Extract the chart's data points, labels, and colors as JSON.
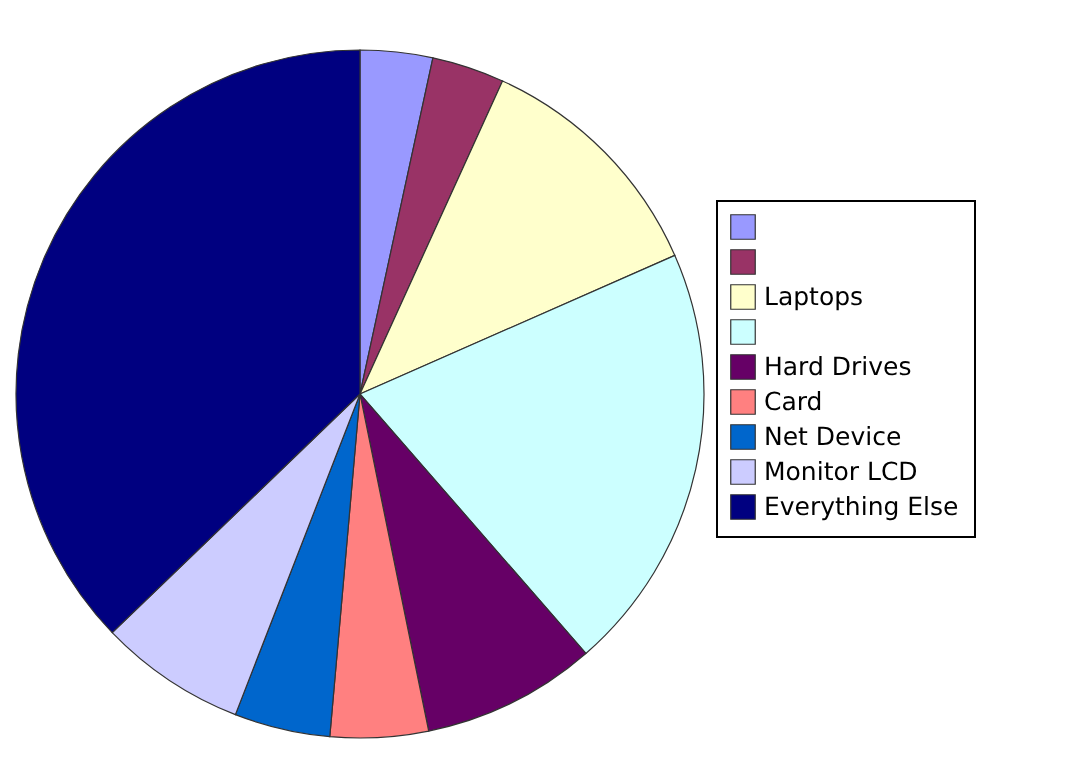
{
  "chart_data": {
    "type": "pie",
    "categories": [
      null,
      null,
      "Laptops",
      null,
      "Hard Drives",
      "Card",
      "Net Device",
      "Monitor LCD",
      "Everything Else"
    ],
    "values": [
      3.4,
      3.4,
      11.6,
      20.2,
      8.2,
      4.6,
      4.5,
      6.9,
      37.2
    ],
    "colors": [
      "#9999ff",
      "#993366",
      "#ffffcc",
      "#ccffff",
      "#660066",
      "#ff8080",
      "#0066cc",
      "#ccccff",
      "#000080"
    ],
    "legend": "right"
  }
}
